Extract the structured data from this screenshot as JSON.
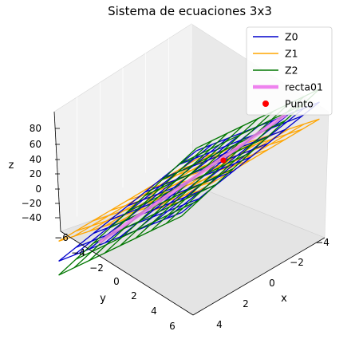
{
  "chart_data": {
    "type": "3d-wireframe",
    "title": "Sistema de ecuaciones 3x3",
    "xlabel": "x",
    "ylabel": "y",
    "zlabel": "z",
    "x_ticks": [
      -4,
      -2,
      0,
      2,
      4
    ],
    "y_ticks": [
      -6,
      -4,
      -2,
      0,
      2,
      4,
      6
    ],
    "z_ticks": [
      80,
      60,
      40,
      20,
      0,
      -20,
      -40
    ],
    "legend_position": "top-right",
    "series": [
      {
        "name": "Z0",
        "kind": "wireframe",
        "color": "#0000cc"
      },
      {
        "name": "Z1",
        "kind": "wireframe",
        "color": "#ffa500"
      },
      {
        "name": "Z2",
        "kind": "wireframe",
        "color": "#007700"
      },
      {
        "name": "recta01",
        "kind": "line",
        "color": "#ee82ee"
      },
      {
        "name": "Punto",
        "kind": "point",
        "color": "#ff0000"
      }
    ]
  }
}
